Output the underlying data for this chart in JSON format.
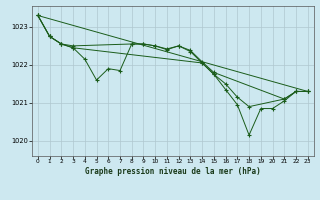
{
  "background_color": "#cde8f0",
  "grid_color": "#b0c8d0",
  "line_color": "#1a5c1a",
  "title": "Graphe pression niveau de la mer (hPa)",
  "xlim": [
    -0.5,
    23.5
  ],
  "ylim": [
    1019.6,
    1023.55
  ],
  "yticks": [
    1020,
    1021,
    1022,
    1023
  ],
  "xticks": [
    0,
    1,
    2,
    3,
    4,
    5,
    6,
    7,
    8,
    9,
    10,
    11,
    12,
    13,
    14,
    15,
    16,
    17,
    18,
    19,
    20,
    21,
    22,
    23
  ],
  "series0_x": [
    0,
    1,
    2,
    3,
    4,
    5,
    6,
    7,
    8,
    9,
    10,
    11,
    12,
    13,
    14,
    15,
    16,
    17,
    18,
    19,
    20,
    21,
    22,
    23
  ],
  "series0_y": [
    1023.3,
    1022.75,
    1022.55,
    1022.45,
    1022.15,
    1021.6,
    1021.9,
    1021.85,
    1022.55,
    1022.55,
    1022.5,
    1022.4,
    1022.5,
    1022.35,
    1022.05,
    1021.75,
    1021.35,
    1020.95,
    1020.15,
    1020.85,
    1020.85,
    1021.05,
    1021.3,
    1021.3
  ],
  "series1_x": [
    0,
    1,
    2,
    3,
    14,
    15,
    16,
    17,
    18,
    21,
    22,
    23
  ],
  "series1_y": [
    1023.3,
    1022.75,
    1022.55,
    1022.45,
    1022.05,
    1021.75,
    1021.5,
    1021.15,
    1020.9,
    1021.1,
    1021.3,
    1021.3
  ],
  "series2_x": [
    0,
    1,
    2,
    3,
    8,
    9,
    10,
    11,
    12,
    13,
    14,
    15,
    21,
    22,
    23
  ],
  "series2_y": [
    1023.3,
    1022.75,
    1022.55,
    1022.5,
    1022.55,
    1022.55,
    1022.5,
    1022.42,
    1022.5,
    1022.38,
    1022.08,
    1021.8,
    1021.1,
    1021.3,
    1021.3
  ],
  "series3_x": [
    0,
    23
  ],
  "series3_y": [
    1023.3,
    1021.3
  ]
}
